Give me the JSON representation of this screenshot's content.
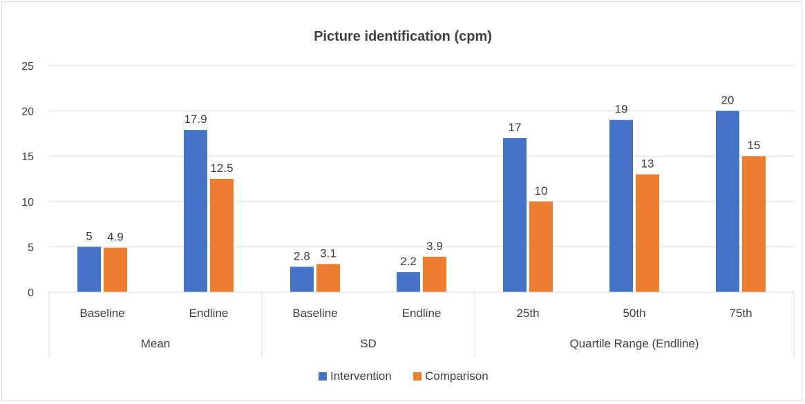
{
  "chart_data": {
    "type": "bar",
    "title": "Picture identification (cpm)",
    "xlabel": "",
    "ylabel": "",
    "ylim": [
      0,
      25
    ],
    "yticks": [
      0,
      5,
      10,
      15,
      20,
      25
    ],
    "grid": true,
    "legend_position": "bottom",
    "categories": [
      "Baseline",
      "Endline",
      "Baseline",
      "Endline",
      "25th",
      "50th",
      "75th"
    ],
    "groups": [
      {
        "label": "Mean",
        "span": 2
      },
      {
        "label": "SD",
        "span": 2
      },
      {
        "label": "Quartile Range (Endline)",
        "span": 3
      }
    ],
    "series": [
      {
        "name": "Intervention",
        "color": "#4472C4",
        "values": [
          5,
          17.9,
          2.8,
          2.2,
          17,
          19,
          20
        ]
      },
      {
        "name": "Comparison",
        "color": "#ED7D31",
        "values": [
          4.9,
          12.5,
          3.1,
          3.9,
          10,
          13,
          15
        ]
      }
    ]
  }
}
